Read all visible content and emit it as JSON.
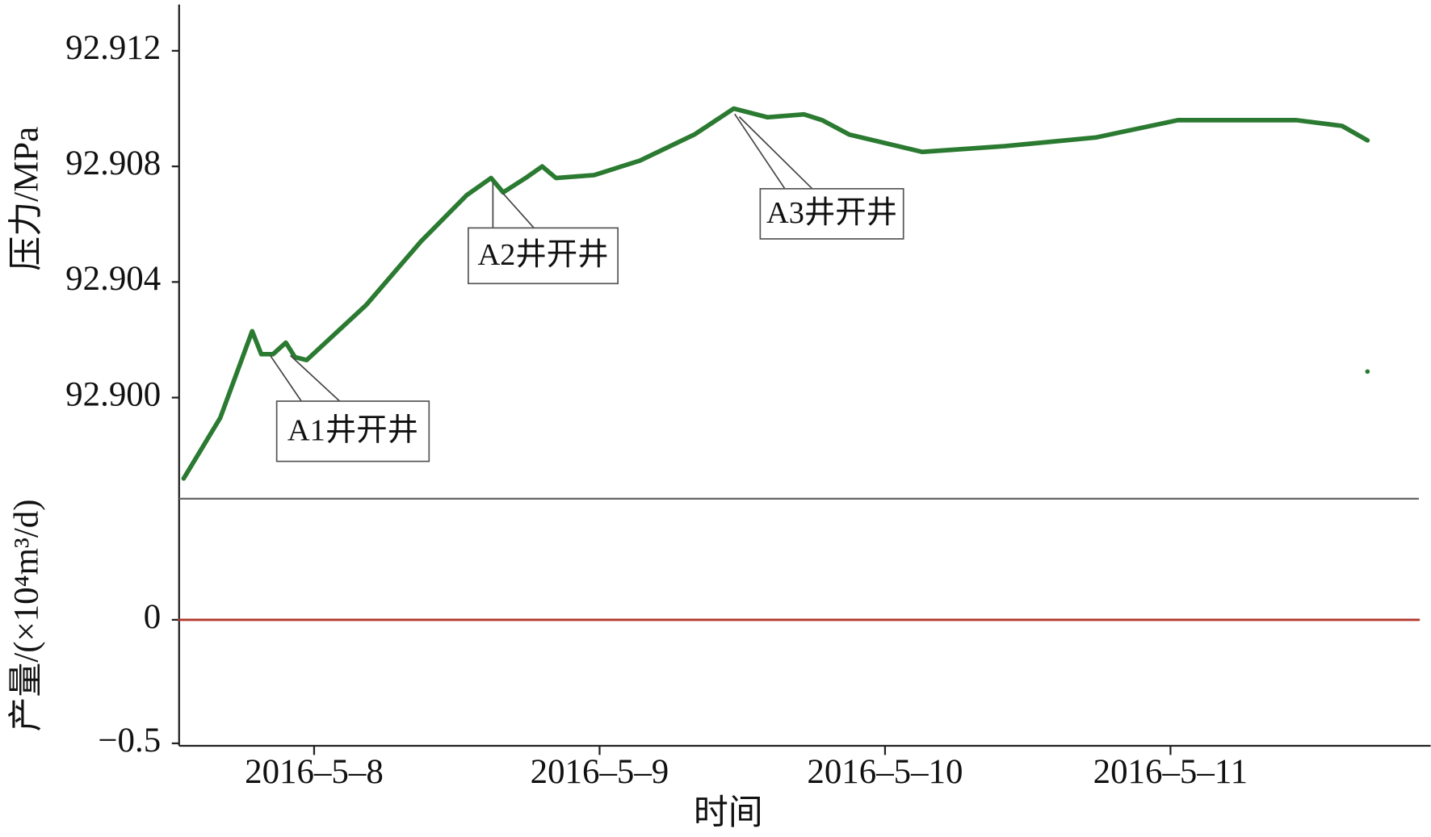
{
  "chart_data": [
    {
      "type": "line",
      "ylabel": "压力/MPa",
      "x": [
        7.543,
        7.671,
        7.783,
        7.815,
        7.856,
        7.901,
        7.933,
        7.974,
        8.182,
        8.374,
        8.534,
        8.62,
        8.662,
        8.741,
        8.799,
        8.847,
        8.981,
        9.141,
        9.332,
        9.47,
        9.588,
        9.716,
        9.78,
        9.875,
        10.131,
        10.419,
        10.738,
        11.026,
        11.441,
        11.601,
        11.69,
        11.69,
        11.69
      ],
      "series": [
        {
          "color": "#2b7a31",
          "values": [
            92.8972,
            92.8993,
            92.9023,
            92.9015,
            92.9015,
            92.9019,
            92.9014,
            92.9013,
            92.9032,
            92.9054,
            92.907,
            92.9076,
            92.9071,
            92.9076,
            92.908,
            92.9076,
            92.9077,
            92.9082,
            92.9091,
            92.91,
            92.9097,
            92.9098,
            92.9096,
            92.9091,
            92.9085,
            92.9087,
            92.909,
            92.9096,
            92.9096,
            92.9094,
            92.9089,
            null,
            92.9009
          ]
        }
      ],
      "xlim": [
        7.527,
        11.87
      ],
      "ylim": [
        92.8965,
        92.9136
      ],
      "yticks": [
        {
          "value": 92.9,
          "label": "92.900"
        },
        92.904,
        92.908,
        92.912
      ],
      "annotations": [
        "A1井开井",
        "A2井开井",
        "A3井开井"
      ]
    },
    {
      "type": "line",
      "ylabel": "产量/(×10⁴m³/d)",
      "xlabel": "时间",
      "x": [
        7.527,
        11.87
      ],
      "series": [
        {
          "color": "#b2392c",
          "values": [
            0,
            0
          ]
        }
      ],
      "xlim": [
        7.527,
        11.87
      ],
      "ylim": [
        -0.51,
        0.49
      ],
      "yticks": [
        {
          "value": -0.5,
          "label": "−0.5"
        },
        0
      ],
      "xticks": [
        {
          "value": 8,
          "label": "2016–5–8"
        },
        {
          "value": 9,
          "label": "2016–5–9"
        },
        {
          "value": 10,
          "label": "2016–5–10"
        },
        {
          "value": 11,
          "label": "2016–5–11"
        }
      ]
    }
  ]
}
